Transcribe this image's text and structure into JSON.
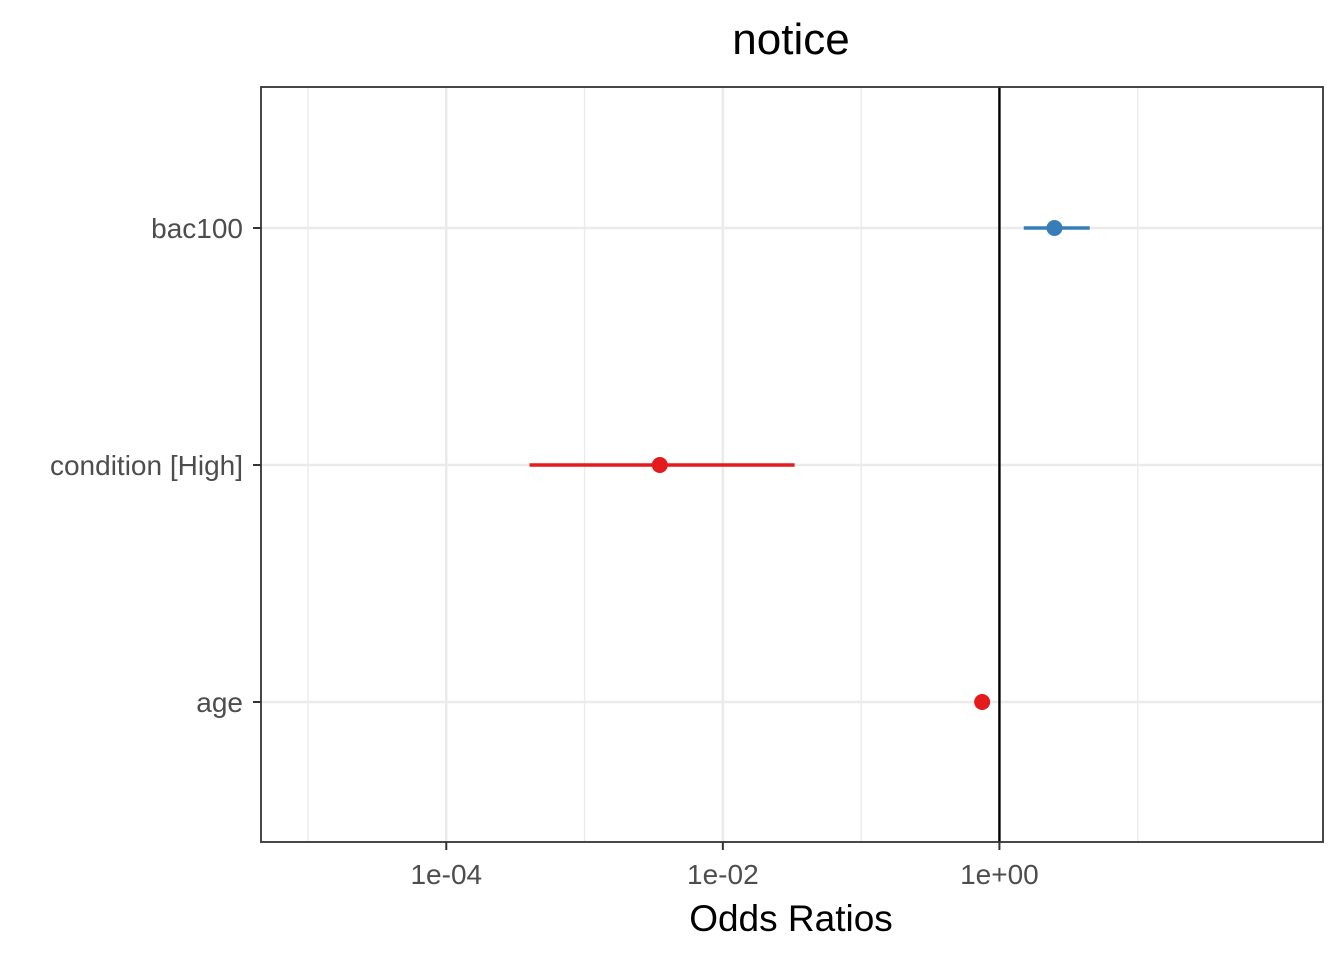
{
  "chart_data": {
    "type": "scatter",
    "title": "notice",
    "xlabel": "Odds Ratios",
    "ylabel": "",
    "x_scale": "log10",
    "xlim": [
      1e-05,
      100
    ],
    "x_ticks": [
      {
        "value": 0.0001,
        "label": "1e-04"
      },
      {
        "value": 0.01,
        "label": "1e-02"
      },
      {
        "value": 1,
        "label": "1e+00"
      }
    ],
    "x_minor_gridlines": [
      1e-05,
      0.001,
      0.1,
      10
    ],
    "reference_line": 1,
    "grid": true,
    "legend": "none",
    "categories": [
      "bac100",
      "condition [High]",
      "age"
    ],
    "points": [
      {
        "term": "bac100",
        "estimate": 2.5,
        "conf_low": 1.5,
        "conf_high": 4.5,
        "color": "#377eb8"
      },
      {
        "term": "condition [High]",
        "estimate": 0.0035,
        "conf_low": 0.0004,
        "conf_high": 0.033,
        "color": "#e41a1c"
      },
      {
        "term": "age",
        "estimate": 0.75,
        "conf_low": 0.73,
        "conf_high": 0.77,
        "color": "#e41a1c"
      }
    ]
  }
}
